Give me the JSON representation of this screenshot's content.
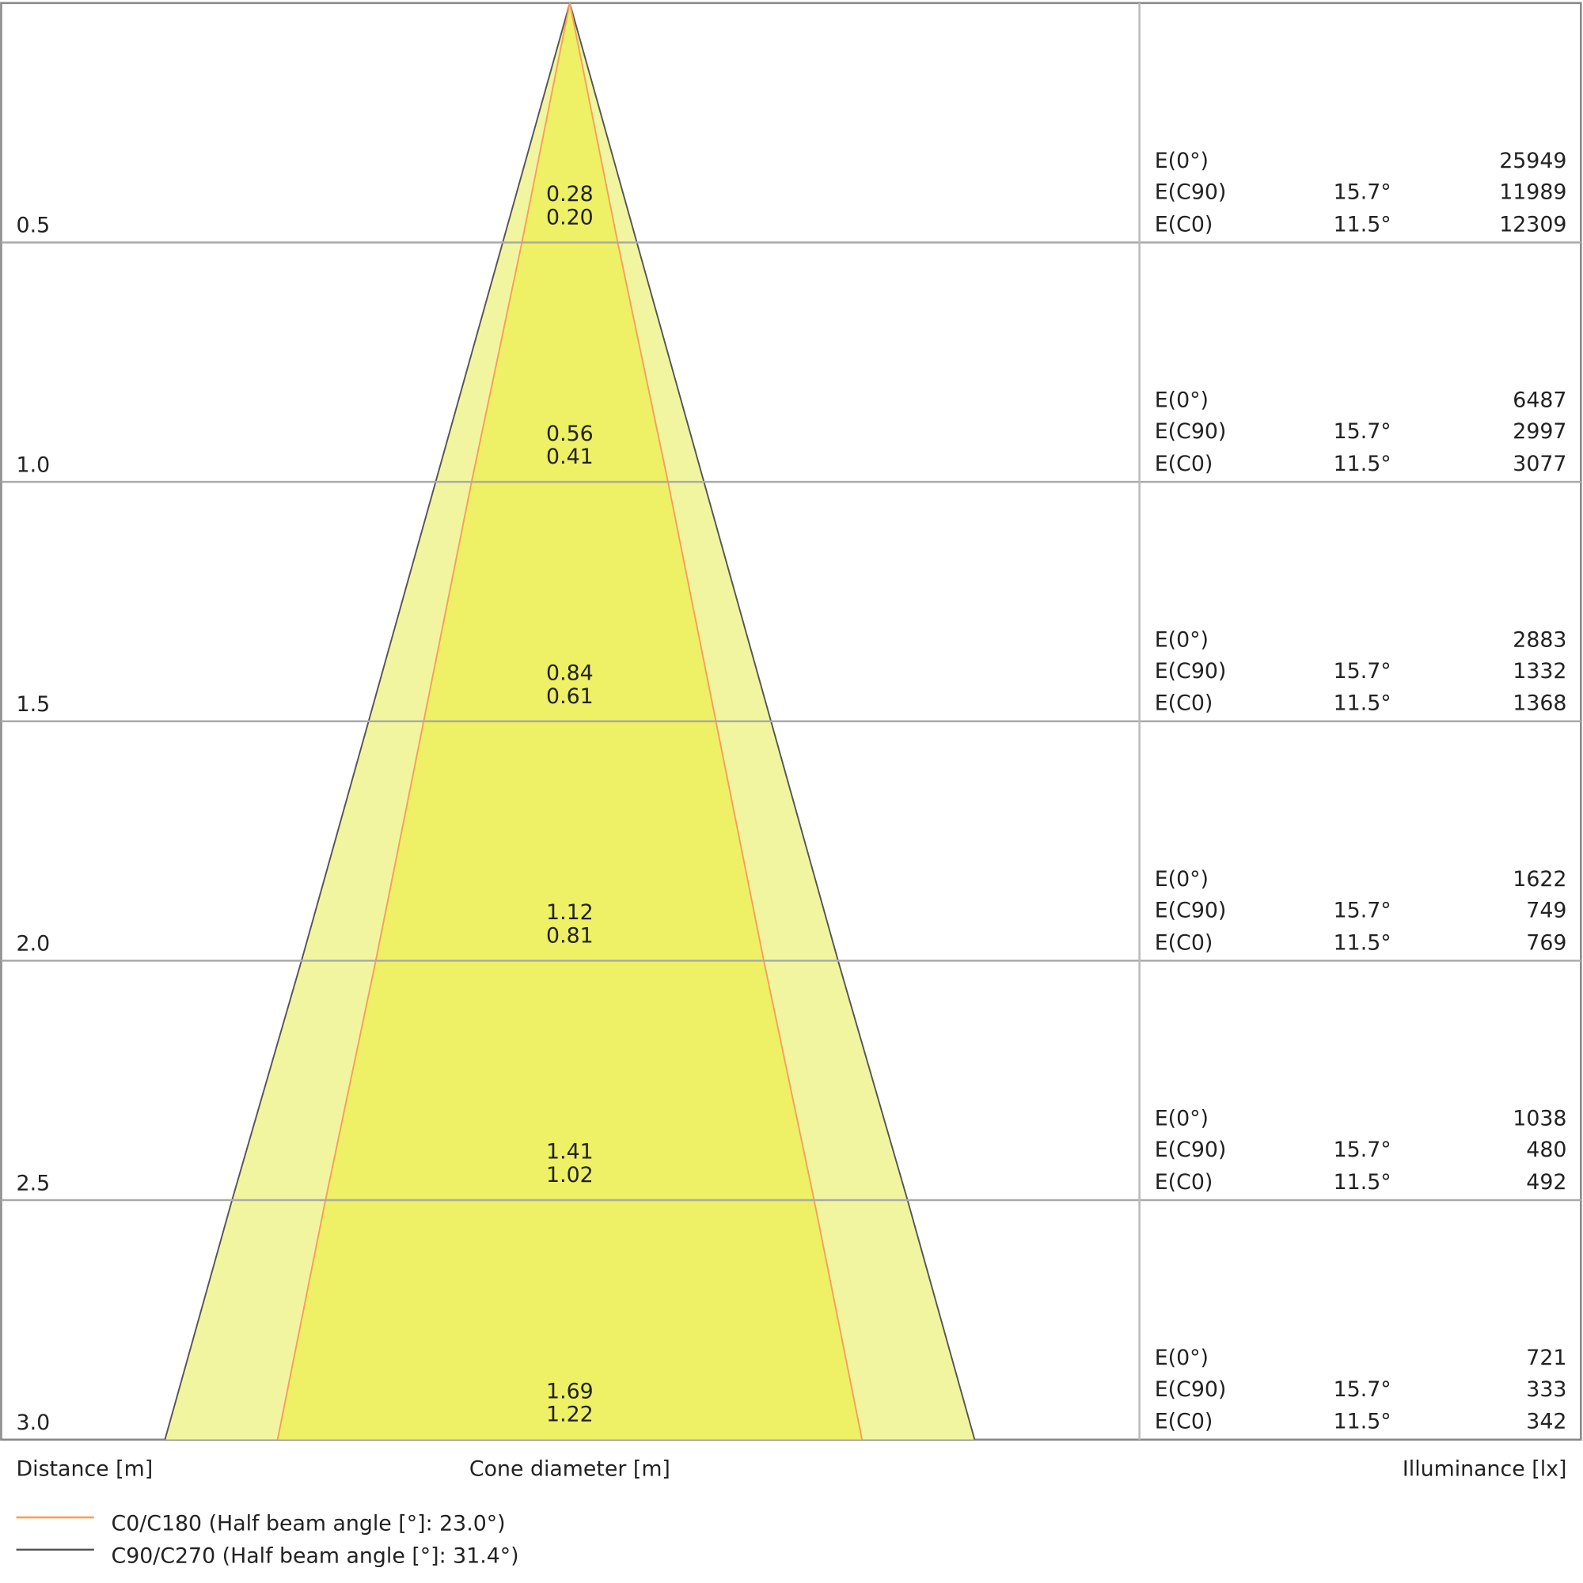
{
  "rows": [
    {
      "distance": {
        "value": 0.5,
        "label": "0.5"
      },
      "diameter_c90": 0.28,
      "diameter_c0": 0.2,
      "diameter_c0_label": "0.20",
      "e0": 25949,
      "e_c90": 11989,
      "e_c0": 12309,
      "angle_c90": "15.7°",
      "angle_c0": "11.5°"
    },
    {
      "distance": {
        "value": 1.0,
        "label": "1.0"
      },
      "diameter_c90": 0.56,
      "diameter_c0": 0.41,
      "diameter_c0_label": "0.41",
      "e0": 6487,
      "e_c90": 2997,
      "e_c0": 3077,
      "angle_c90": "15.7°",
      "angle_c0": "11.5°"
    },
    {
      "distance": {
        "value": 1.5,
        "label": "1.5"
      },
      "diameter_c90": 0.84,
      "diameter_c0": 0.61,
      "diameter_c0_label": "0.61",
      "e0": 2883,
      "e_c90": 1332,
      "e_c0": 1368,
      "angle_c90": "15.7°",
      "angle_c0": "11.5°"
    },
    {
      "distance": {
        "value": 2.0,
        "label": "2.0"
      },
      "diameter_c90": 1.12,
      "diameter_c0": 0.81,
      "diameter_c0_label": "0.81",
      "e0": 1622,
      "e_c90": 749,
      "e_c0": 769,
      "angle_c90": "15.7°",
      "angle_c0": "11.5°"
    },
    {
      "distance": {
        "value": 2.5,
        "label": "2.5"
      },
      "diameter_c90": 1.41,
      "diameter_c0": 1.02,
      "diameter_c0_label": "1.02",
      "e0": 1038,
      "e_c90": 480,
      "e_c0": 492,
      "angle_c90": "15.7°",
      "angle_c0": "11.5°"
    },
    {
      "distance": {
        "value": 3.0,
        "label": "3.0"
      },
      "diameter_c90": 1.69,
      "diameter_c0": 1.22,
      "diameter_c0_label": "1.22",
      "e0": 721,
      "e_c90": 333,
      "e_c0": 342,
      "angle_c90": "15.7°",
      "angle_c0": "11.5°"
    }
  ],
  "row_labels": {
    "e0": "E(0°)",
    "e_c90": "E(C90)",
    "e_c0": "E(C0)"
  },
  "axis_labels": {
    "distance": "Distance [m]",
    "diameter": "Cone diameter [m]",
    "illuminance": "Illuminance [lx]"
  },
  "legend": [
    {
      "name": "C0/C180 (Half beam angle [°]: 23.0°)",
      "color": "#f5a05a"
    },
    {
      "name": "C90/C270 (Half beam angle [°]: 31.4°)",
      "color": "#555555"
    }
  ]
}
